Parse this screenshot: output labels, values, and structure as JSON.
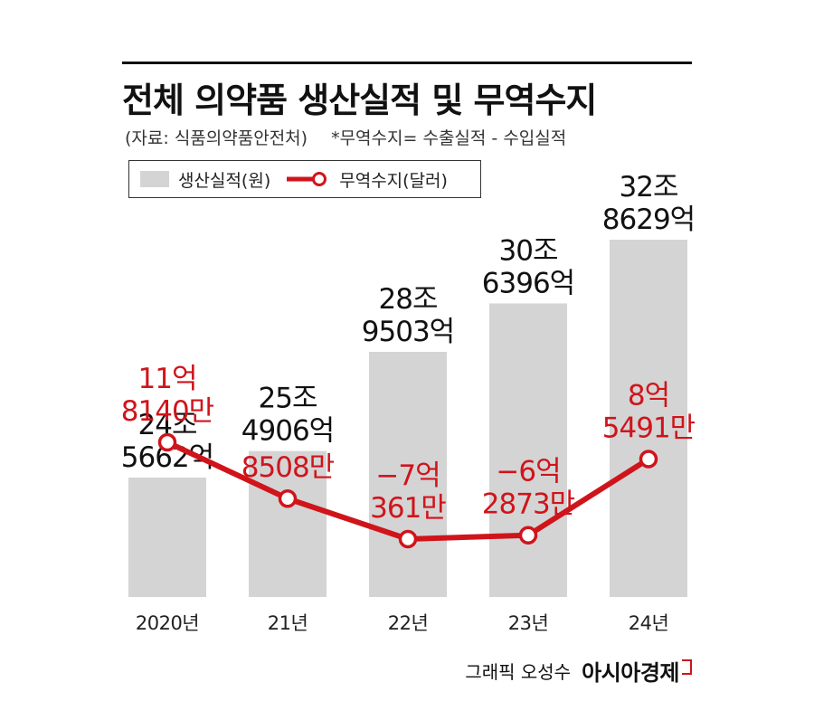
{
  "header": {
    "title": "전체 의약품 생산실적 및 무역수지",
    "source": "(자료: 식품의약품안전처)",
    "note": "*무역수지= 수출실적 - 수입실적"
  },
  "legend": {
    "bar_label": "생산실적(원)",
    "line_label": "무역수지(달러)"
  },
  "credit": {
    "byline": "그래픽 오성수",
    "brand": "아시아경제"
  },
  "colors": {
    "bar": "#d4d4d4",
    "line": "#d0141b",
    "bar_label_text": "#111111",
    "line_label_text": "#d0141b"
  },
  "chart_data": {
    "type": "bar",
    "categories": [
      "2020년",
      "21년",
      "22년",
      "23년",
      "24년"
    ],
    "series": [
      {
        "name": "생산실적(원)",
        "type": "bar",
        "values": [
          245662,
          254906,
          289503,
          306396,
          328629
        ],
        "unit": "억원",
        "labels": [
          [
            "24조",
            "5662억"
          ],
          [
            "25조",
            "4906억"
          ],
          [
            "28조",
            "9503억"
          ],
          [
            "30조",
            "6396억"
          ],
          [
            "32조",
            "8629억"
          ]
        ]
      },
      {
        "name": "무역수지(달러)",
        "type": "line",
        "values": [
          118140,
          8508,
          -70361,
          -62873,
          85491
        ],
        "unit": "만달러",
        "labels": [
          [
            "11억",
            "8140만"
          ],
          [
            "8508만"
          ],
          [
            "−7억",
            "361만"
          ],
          [
            "−6억",
            "2873만"
          ],
          [
            "8억",
            "5491만"
          ]
        ]
      }
    ],
    "title": "전체 의약품 생산실적 및 무역수지",
    "grid": false,
    "legend_position": "top-left"
  }
}
